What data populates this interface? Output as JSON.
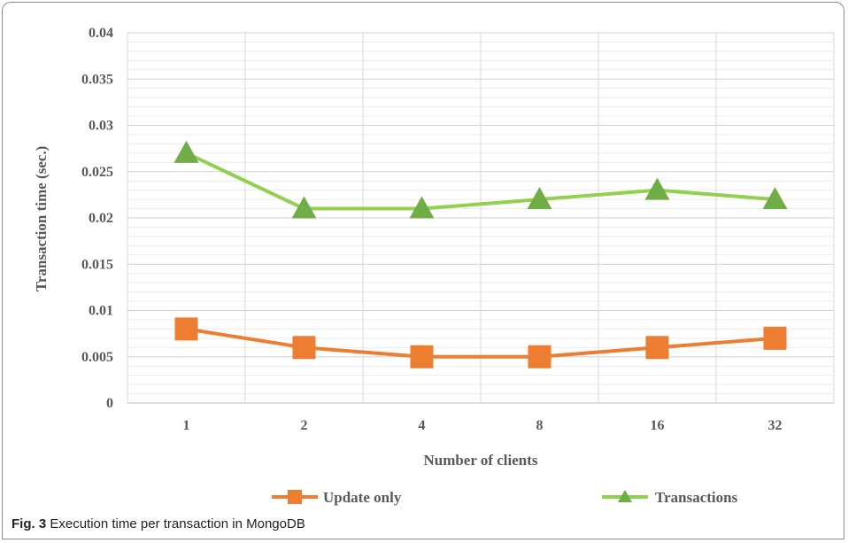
{
  "caption": {
    "label": "Fig. 3",
    "text": "Execution time per transaction in MongoDB"
  },
  "chart_data": {
    "type": "line",
    "xlabel": "Number of clients",
    "ylabel": "Transaction time (sec.)",
    "categories": [
      "1",
      "2",
      "4",
      "8",
      "16",
      "32"
    ],
    "ylim": [
      0,
      0.04
    ],
    "yticks": [
      "0",
      "0.005",
      "0.01",
      "0.015",
      "0.02",
      "0.025",
      "0.03",
      "0.035",
      "0.04"
    ],
    "ytick_values": [
      0,
      0.005,
      0.01,
      0.015,
      0.02,
      0.025,
      0.03,
      0.035,
      0.04
    ],
    "minor_grid_step": 0.001,
    "grid": true,
    "legend_position": "bottom",
    "series": [
      {
        "name": "Update only",
        "values": [
          0.008,
          0.006,
          0.005,
          0.005,
          0.006,
          0.007
        ],
        "color": "#ED7D31",
        "marker": "square"
      },
      {
        "name": "Transactions",
        "values": [
          0.027,
          0.021,
          0.021,
          0.022,
          0.023,
          0.022
        ],
        "color": "#92D050",
        "marker": "triangle"
      }
    ]
  }
}
